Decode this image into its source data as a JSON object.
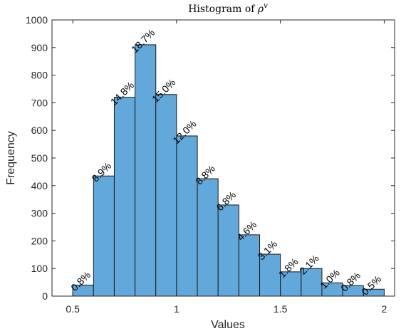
{
  "chart_data": {
    "type": "bar",
    "title_prefix": "Histogram of ",
    "title_symbol": "ρ",
    "title_sup": "v",
    "xlabel": "Values",
    "ylabel": "Frequency",
    "xlim": [
      0.4,
      2.05
    ],
    "ylim": [
      0,
      1000
    ],
    "xticks": [
      0.5,
      1,
      1.5,
      2
    ],
    "xtick_labels": [
      "0.5",
      "1",
      "1.5",
      "2"
    ],
    "yticks": [
      0,
      100,
      200,
      300,
      400,
      500,
      600,
      700,
      800,
      900,
      1000
    ],
    "ytick_labels": [
      "0",
      "100",
      "200",
      "300",
      "400",
      "500",
      "600",
      "700",
      "800",
      "900",
      "1000"
    ],
    "bin_edges": [
      0.5,
      0.6,
      0.7,
      0.8,
      0.9,
      1.0,
      1.1,
      1.2,
      1.3,
      1.4,
      1.5,
      1.6,
      1.7,
      1.8,
      1.9,
      2.0
    ],
    "values": [
      40,
      435,
      720,
      910,
      730,
      580,
      425,
      330,
      222,
      152,
      88,
      100,
      48,
      38,
      25
    ],
    "labels": [
      "0.8%",
      "8.9%",
      "14.8%",
      "18.7%",
      "15.0%",
      "12.0%",
      "8.8%",
      "6.8%",
      "4.6%",
      "3.1%",
      "1.8%",
      "2.1%",
      "1.0%",
      "0.8%",
      "0.5%"
    ],
    "grid": false,
    "bar_color": "#62a8db",
    "edge_color": "#1a1a1a"
  }
}
